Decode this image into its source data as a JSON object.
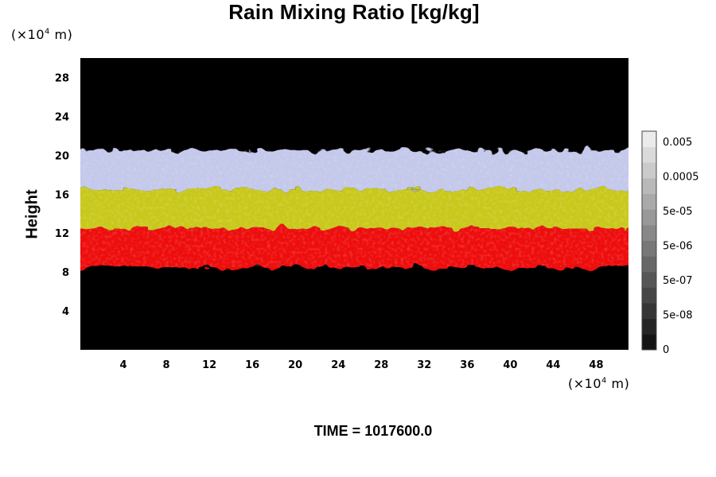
{
  "chart_data": {
    "type": "heatmap",
    "title": "Rain Mixing Ratio [kg/kg]",
    "ylabel": "Height",
    "xlabel": "",
    "x_unit_prefix": "(×10",
    "x_unit_exp": "4",
    "x_unit_suffix": " m)",
    "y_unit_prefix": "(×10",
    "y_unit_exp": "4",
    "y_unit_suffix": " m)",
    "xlim": [
      0,
      51
    ],
    "ylim": [
      0,
      30
    ],
    "xticks": [
      4,
      8,
      12,
      16,
      20,
      24,
      28,
      32,
      36,
      40,
      44,
      48
    ],
    "yticks": [
      4,
      8,
      12,
      16,
      20,
      24,
      28
    ],
    "colorbar": {
      "labels": [
        "0.005",
        "0.0005",
        "5e-05",
        "5e-06",
        "5e-07",
        "5e-08",
        "0"
      ],
      "levels": 14
    },
    "layers": [
      {
        "name": "red",
        "color": "#ee1111",
        "y_range": [
          8.5,
          12.5
        ]
      },
      {
        "name": "yellow",
        "color": "#c8c81e",
        "y_range": [
          12.5,
          16.5
        ]
      },
      {
        "name": "lavender",
        "color": "#c4c8ea",
        "y_range": [
          16.5,
          20.5
        ]
      }
    ],
    "background_color": "#000000"
  },
  "footer": {
    "time_label": "TIME = 1017600.0"
  }
}
